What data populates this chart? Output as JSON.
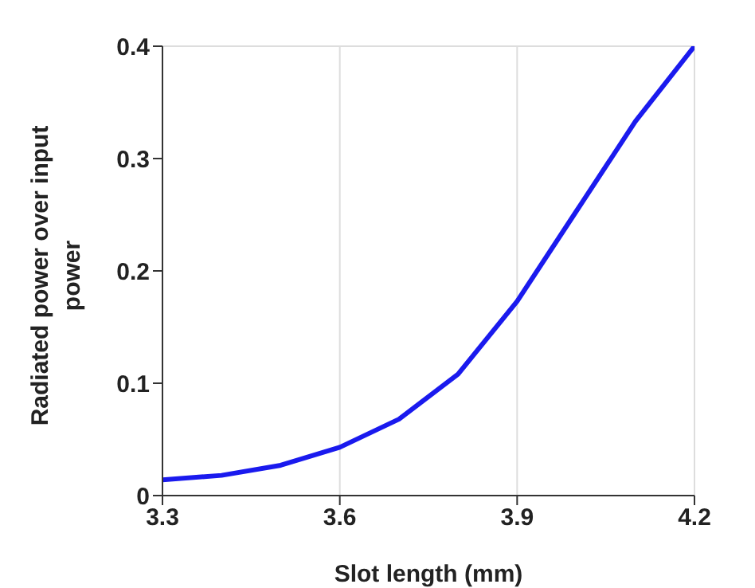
{
  "chart_data": {
    "type": "line",
    "xlabel": "Slot length (mm)",
    "ylabel": "Radiated power over input power",
    "x": [
      3.3,
      3.4,
      3.5,
      3.6,
      3.7,
      3.8,
      3.9,
      4.0,
      4.1,
      4.2
    ],
    "series": [
      {
        "color": "#1a1aee",
        "values": [
          0.014,
          0.018,
          0.027,
          0.043,
          0.068,
          0.108,
          0.173,
          0.253,
          0.333,
          0.4
        ]
      }
    ],
    "xlim": [
      3.3,
      4.2
    ],
    "xticks": [
      3.3,
      3.6,
      3.9,
      4.2
    ],
    "ylim": [
      0,
      0.4
    ],
    "yticks": [
      0,
      0.1,
      0.2,
      0.3,
      0.4
    ],
    "grid": true,
    "marker": "none",
    "line_style": "solid"
  }
}
